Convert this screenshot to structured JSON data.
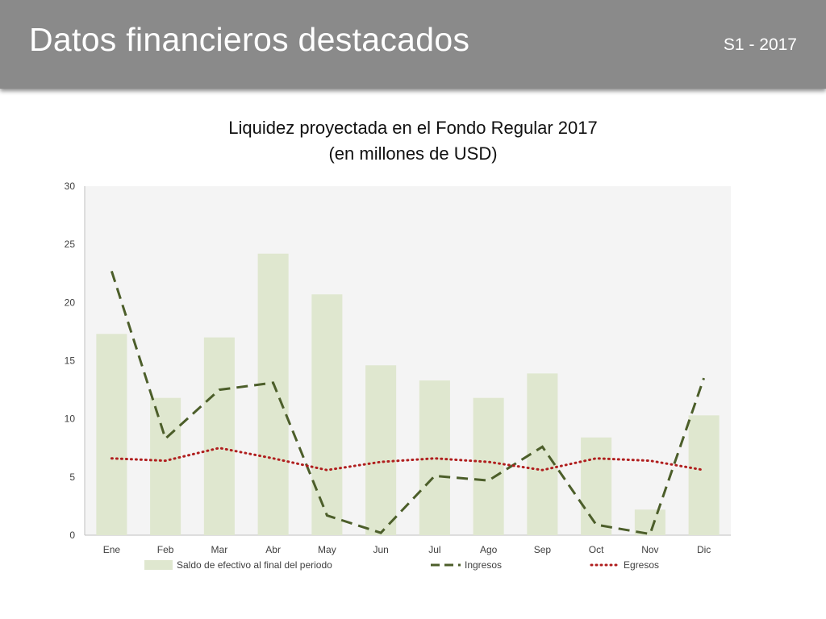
{
  "header": {
    "title": "Datos financieros destacados",
    "period": "S1 - 2017"
  },
  "colors": {
    "header_bg": "#8a8a8a",
    "plot_bg": "#f4f4f4",
    "bar": "#dfe7cf",
    "ingresos": "#4c5e2a",
    "egresos": "#b01e1e"
  },
  "chart_data": {
    "type": "bar",
    "title": "Liquidez proyectada en el Fondo Regular 2017",
    "subtitle": "(en millones de USD)",
    "categories": [
      "Ene",
      "Feb",
      "Mar",
      "Abr",
      "May",
      "Jun",
      "Jul",
      "Ago",
      "Sep",
      "Oct",
      "Nov",
      "Dic"
    ],
    "ylim": [
      0,
      30
    ],
    "yticks": [
      0,
      5,
      10,
      15,
      20,
      25,
      30
    ],
    "grid": false,
    "legend_position": "bottom",
    "series": [
      {
        "name": "Saldo de efectivo al final del periodo",
        "type": "bar",
        "style": "solid",
        "values": [
          17.3,
          11.8,
          17.0,
          24.2,
          20.7,
          14.6,
          13.3,
          11.8,
          13.9,
          8.4,
          2.2,
          10.3
        ]
      },
      {
        "name": "Ingresos",
        "type": "line",
        "style": "dashed",
        "values": [
          22.7,
          8.3,
          12.5,
          13.1,
          1.7,
          0.2,
          5.1,
          4.7,
          7.6,
          0.9,
          0.1,
          13.5
        ]
      },
      {
        "name": "Egresos",
        "type": "line",
        "style": "dotted",
        "values": [
          6.6,
          6.4,
          7.5,
          6.6,
          5.6,
          6.3,
          6.6,
          6.3,
          5.6,
          6.6,
          6.4,
          5.6
        ]
      }
    ]
  }
}
